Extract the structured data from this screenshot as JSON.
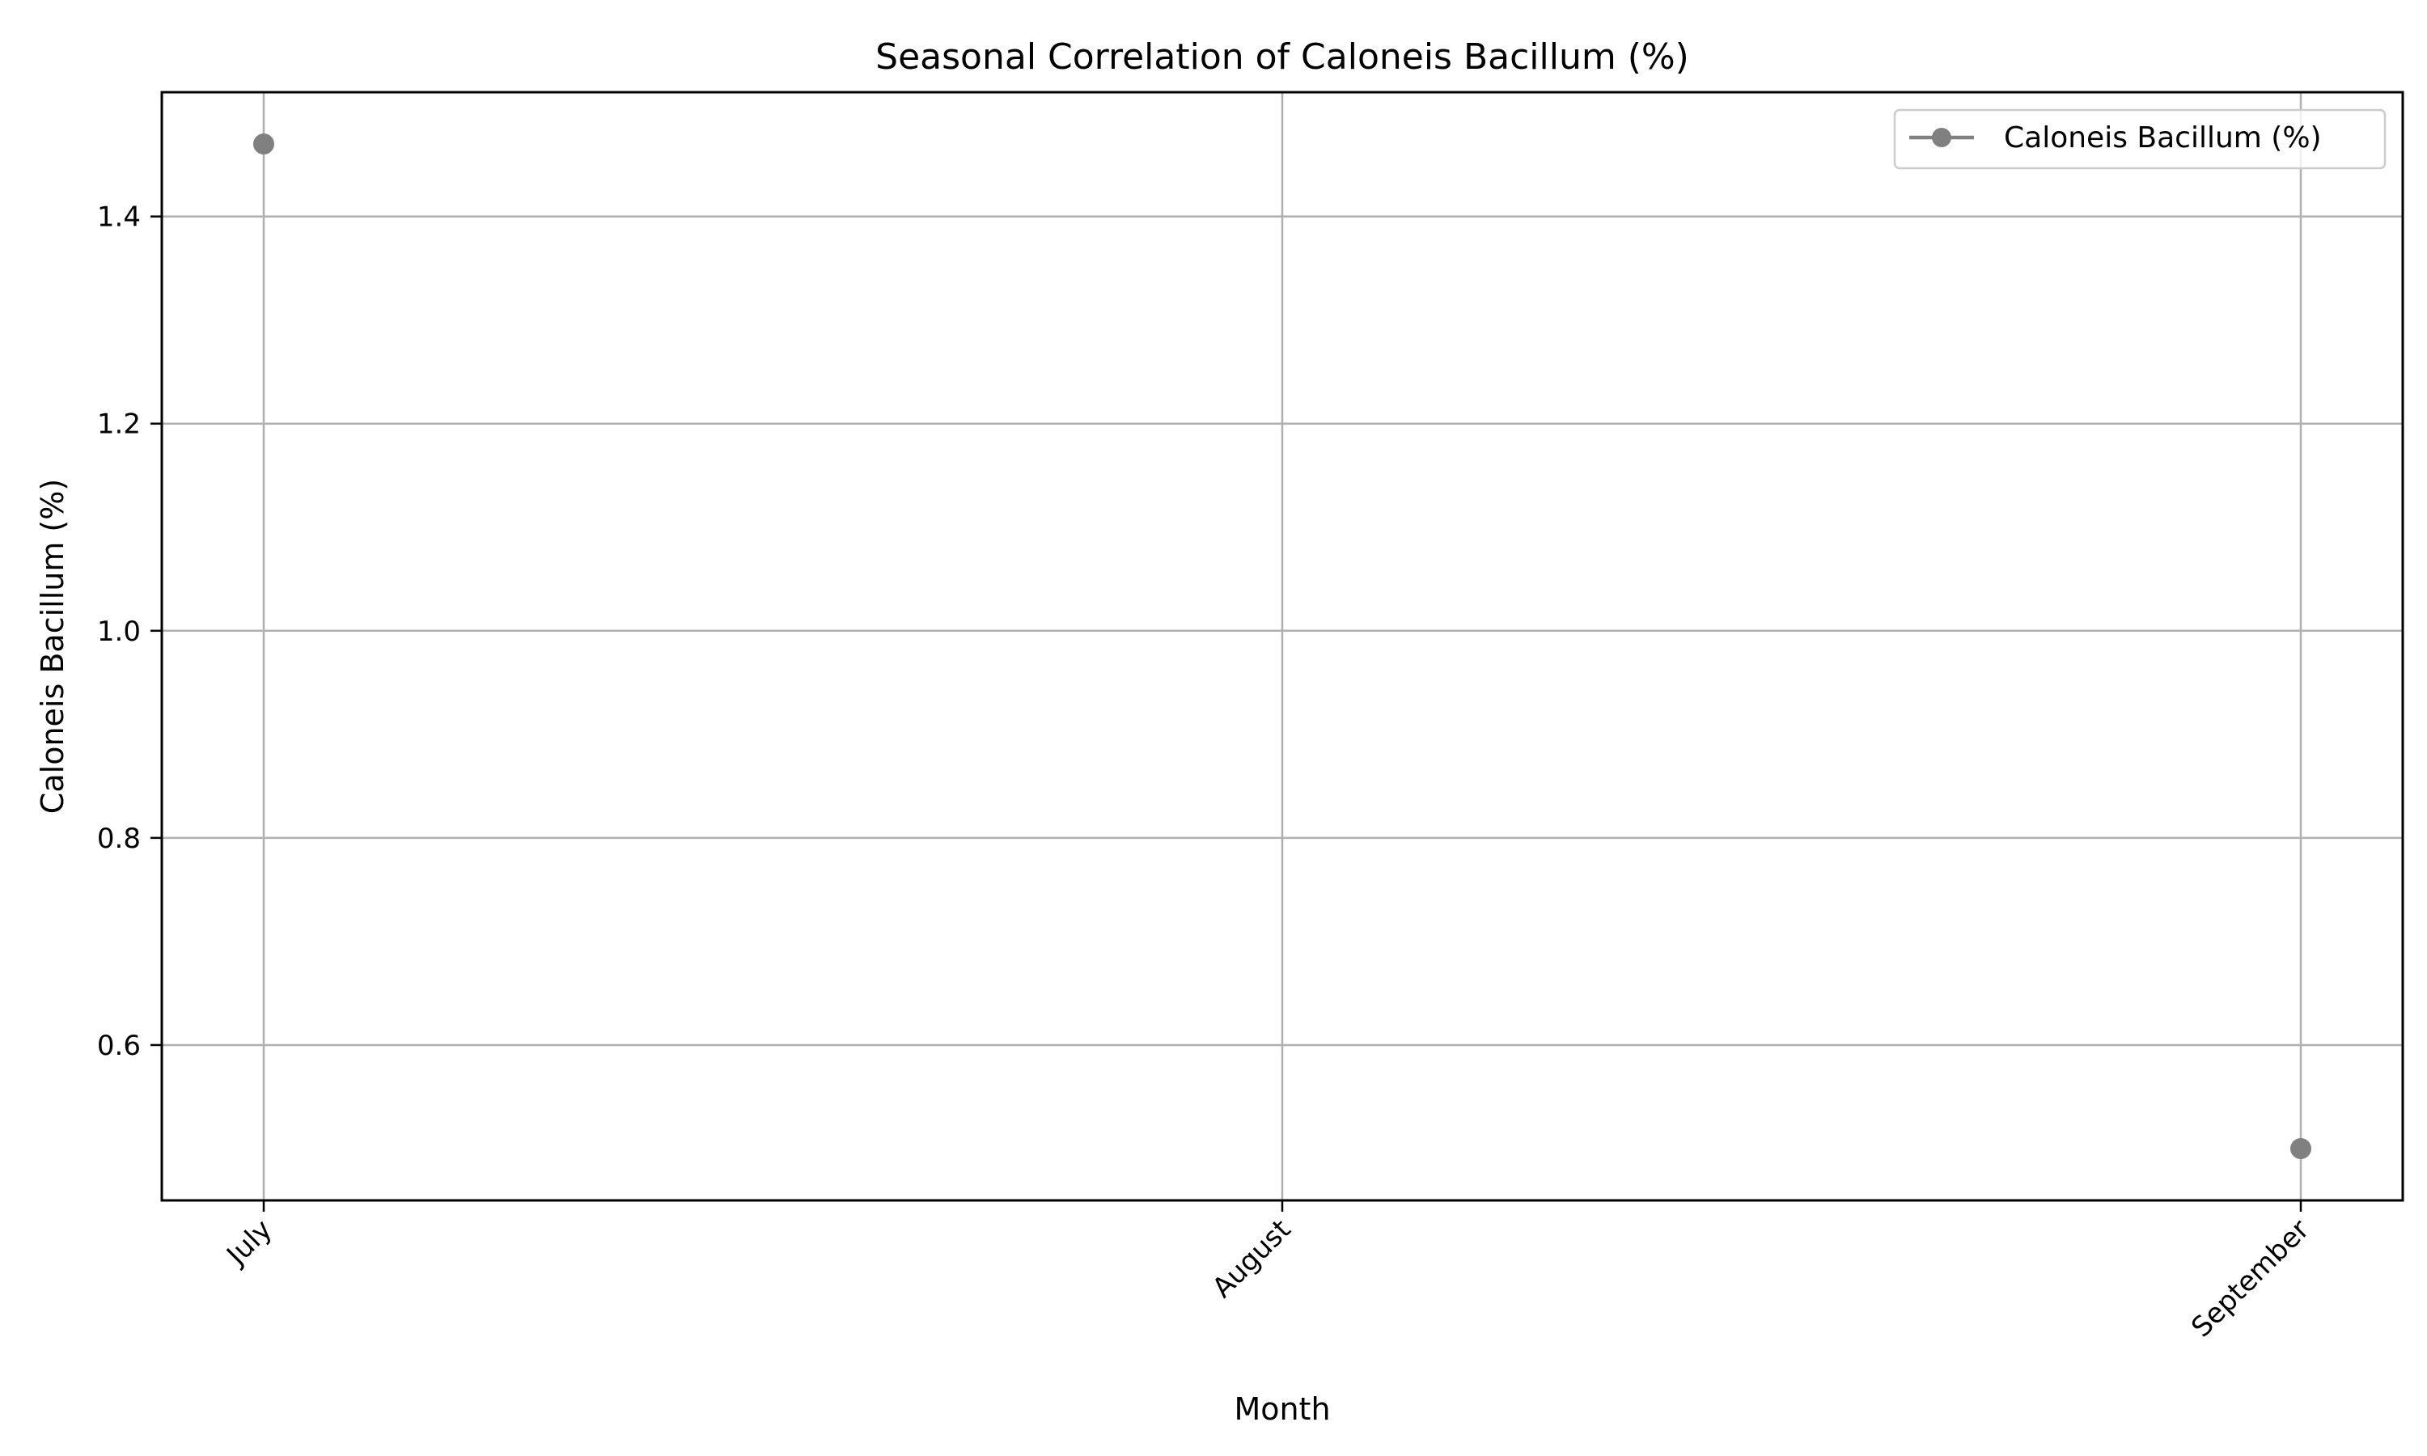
{
  "chart_data": {
    "type": "line",
    "title": "Seasonal Correlation of Caloneis Bacillum (%)",
    "xlabel": "Month",
    "ylabel": "Caloneis Bacillum (%)",
    "categories": [
      "July",
      "August",
      "September"
    ],
    "series": [
      {
        "name": "Caloneis Bacillum (%)",
        "values": [
          1.47,
          null,
          0.5
        ],
        "color": "#808080"
      }
    ],
    "ylim": [
      0.45,
      1.52
    ],
    "yticks": [
      "0.6",
      "0.8",
      "1.0",
      "1.2",
      "1.4"
    ],
    "ytick_values": [
      0.6,
      0.8,
      1.0,
      1.2,
      1.4
    ],
    "grid": true,
    "legend_position": "top-right",
    "xtick_rotation": -45,
    "grid_color": "#b0b0b0"
  }
}
